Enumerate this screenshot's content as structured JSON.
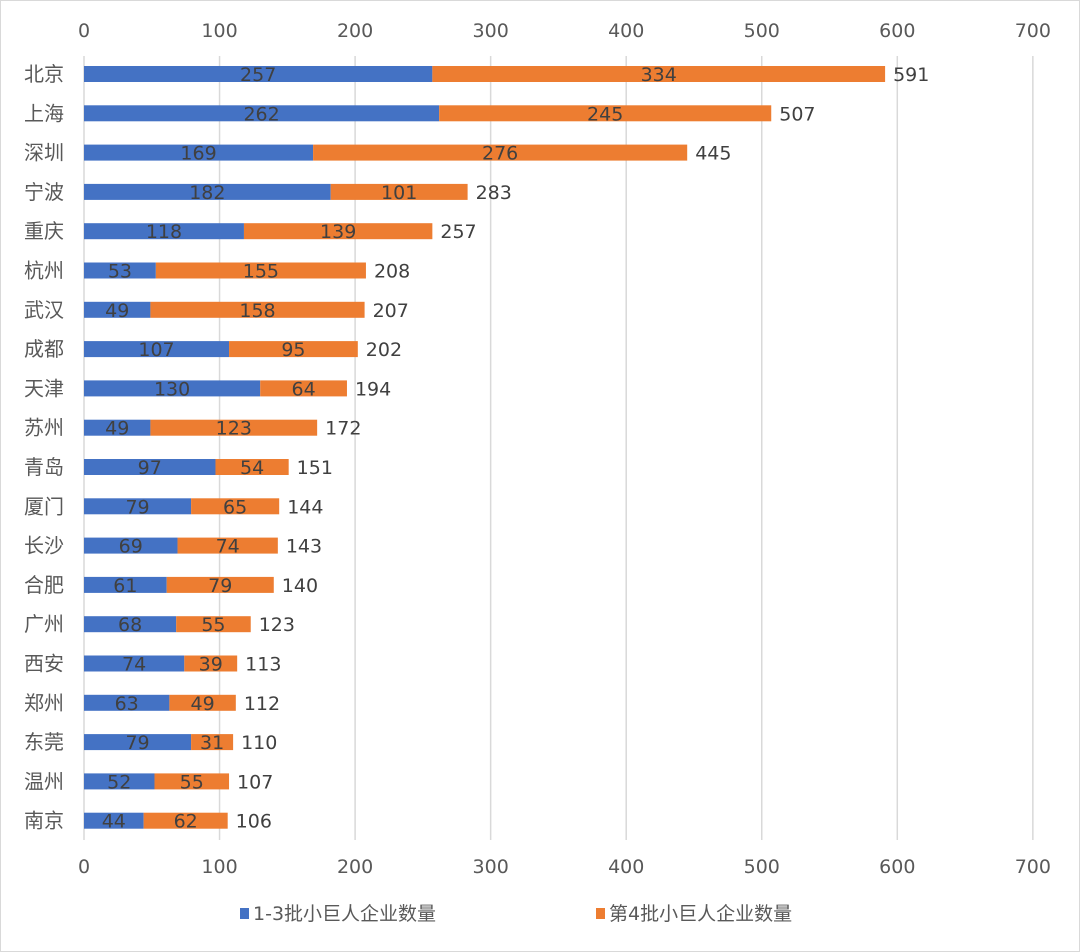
{
  "chart_data": {
    "type": "bar",
    "orientation": "horizontal",
    "stacked": true,
    "categories": [
      "北京",
      "上海",
      "深圳",
      "宁波",
      "重庆",
      "杭州",
      "武汉",
      "成都",
      "天津",
      "苏州",
      "青岛",
      "厦门",
      "长沙",
      "合肥",
      "广州",
      "西安",
      "郑州",
      "东莞",
      "温州",
      "南京"
    ],
    "series": [
      {
        "name": "1-3批小巨人企业数量",
        "color": "#4472C4",
        "values": [
          257,
          262,
          169,
          182,
          118,
          53,
          49,
          107,
          130,
          49,
          97,
          79,
          69,
          61,
          68,
          74,
          63,
          79,
          52,
          44
        ]
      },
      {
        "name": "第4批小巨人企业数量",
        "color": "#ED7D31",
        "values": [
          334,
          245,
          276,
          101,
          139,
          155,
          158,
          95,
          64,
          123,
          54,
          65,
          74,
          79,
          55,
          39,
          49,
          31,
          55,
          62
        ]
      }
    ],
    "totals": [
      591,
      507,
      445,
      283,
      257,
      208,
      207,
      202,
      194,
      172,
      151,
      144,
      143,
      140,
      123,
      113,
      112,
      110,
      107,
      106
    ],
    "xlim": [
      0,
      700
    ],
    "xticks": [
      0,
      100,
      200,
      300,
      400,
      500,
      600,
      700
    ],
    "xaxis_top_and_bottom": true,
    "grid": "vertical",
    "legend": "bottom"
  }
}
